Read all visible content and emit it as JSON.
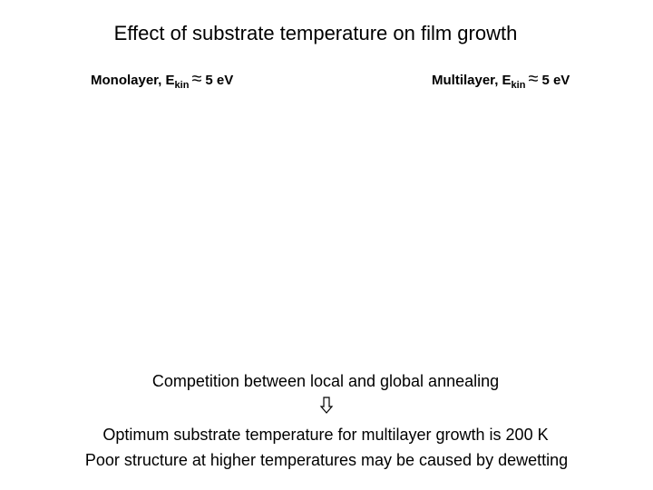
{
  "title": "Effect of substrate temperature on film growth",
  "panels": [
    {
      "label": "Monolayer, E",
      "subscript": "kin",
      "approx": "≈",
      "value": "5 eV"
    },
    {
      "label": "Multilayer, E",
      "subscript": "kin",
      "approx": "≈",
      "value": "5 eV"
    }
  ],
  "conclusion": {
    "premise": "Competition between local and global annealing",
    "lines": [
      "Optimum substrate temperature for multilayer growth is 200 K",
      "Poor structure at higher temperatures may be caused by dewetting"
    ]
  }
}
